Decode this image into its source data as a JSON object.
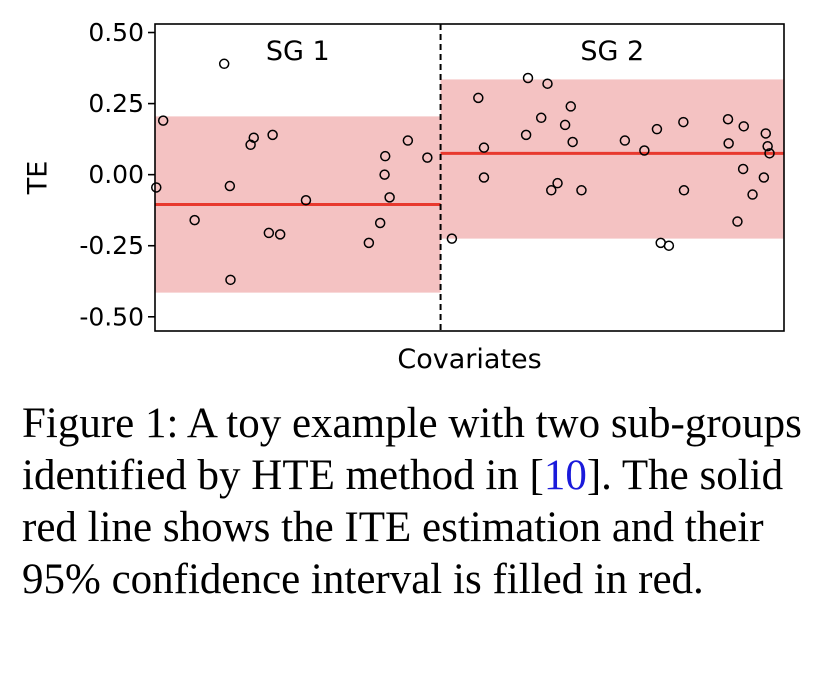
{
  "chart_data": {
    "type": "scatter",
    "title": "",
    "xlabel": "Covariates",
    "ylabel": "TE",
    "ylim": [
      -0.55,
      0.53
    ],
    "yticks": [
      0.5,
      0.25,
      0.0,
      -0.25,
      -0.5
    ],
    "ytick_labels": [
      "0.50",
      "0.25",
      "0.00",
      "-0.25",
      "-0.50"
    ],
    "xlim": [
      0,
      100
    ],
    "divider_x": 45.4,
    "grid": false,
    "subgroups": [
      {
        "name": "SG 1",
        "x_range": [
          0,
          45.4
        ],
        "ite_estimate": -0.105,
        "ci": [
          -0.415,
          0.205
        ],
        "points": [
          {
            "x": 0.2,
            "y": -0.045
          },
          {
            "x": 1.3,
            "y": 0.19
          },
          {
            "x": 6.3,
            "y": -0.16
          },
          {
            "x": 11.0,
            "y": 0.39
          },
          {
            "x": 11.9,
            "y": -0.04
          },
          {
            "x": 12.0,
            "y": -0.37
          },
          {
            "x": 15.2,
            "y": 0.105
          },
          {
            "x": 15.7,
            "y": 0.13
          },
          {
            "x": 18.1,
            "y": -0.205
          },
          {
            "x": 18.7,
            "y": 0.14
          },
          {
            "x": 19.9,
            "y": -0.21
          },
          {
            "x": 24.0,
            "y": -0.09
          },
          {
            "x": 34.0,
            "y": -0.24
          },
          {
            "x": 35.8,
            "y": -0.17
          },
          {
            "x": 36.5,
            "y": 0.0
          },
          {
            "x": 36.6,
            "y": 0.065
          },
          {
            "x": 37.3,
            "y": -0.08
          },
          {
            "x": 40.2,
            "y": 0.12
          },
          {
            "x": 43.3,
            "y": 0.06
          }
        ]
      },
      {
        "name": "SG 2",
        "x_range": [
          45.4,
          100
        ],
        "ite_estimate": 0.075,
        "ci": [
          -0.225,
          0.335
        ],
        "points": [
          {
            "x": 47.2,
            "y": -0.225
          },
          {
            "x": 51.4,
            "y": 0.27
          },
          {
            "x": 52.3,
            "y": 0.095
          },
          {
            "x": 52.3,
            "y": -0.01
          },
          {
            "x": 59.0,
            "y": 0.14
          },
          {
            "x": 59.3,
            "y": 0.34
          },
          {
            "x": 61.4,
            "y": 0.2
          },
          {
            "x": 62.4,
            "y": 0.32
          },
          {
            "x": 63.0,
            "y": -0.055
          },
          {
            "x": 64.0,
            "y": -0.03
          },
          {
            "x": 65.2,
            "y": 0.175
          },
          {
            "x": 66.1,
            "y": 0.24
          },
          {
            "x": 66.4,
            "y": 0.115
          },
          {
            "x": 67.8,
            "y": -0.055
          },
          {
            "x": 74.7,
            "y": 0.12
          },
          {
            "x": 77.8,
            "y": 0.085
          },
          {
            "x": 79.8,
            "y": 0.16
          },
          {
            "x": 80.4,
            "y": -0.24
          },
          {
            "x": 81.7,
            "y": -0.25
          },
          {
            "x": 84.0,
            "y": 0.185
          },
          {
            "x": 84.1,
            "y": -0.055
          },
          {
            "x": 91.1,
            "y": 0.195
          },
          {
            "x": 91.2,
            "y": 0.11
          },
          {
            "x": 92.6,
            "y": -0.165
          },
          {
            "x": 93.5,
            "y": 0.02
          },
          {
            "x": 93.6,
            "y": 0.17
          },
          {
            "x": 95.0,
            "y": -0.07
          },
          {
            "x": 96.8,
            "y": -0.01
          },
          {
            "x": 97.1,
            "y": 0.145
          },
          {
            "x": 97.4,
            "y": 0.1
          },
          {
            "x": 97.7,
            "y": 0.075
          }
        ]
      }
    ],
    "colors": {
      "ci_fill": "#f4c2c2",
      "ite_line": "#e8392e",
      "points_edge": "#000000",
      "divider": "#000000"
    }
  },
  "caption": {
    "prefix": "Figure 1: A toy example with two sub-groups identified by HTE method in [",
    "ref": "10",
    "suffix": "]. The solid red line shows the ITE estimation and their 95% confidence interval is filled in red."
  }
}
